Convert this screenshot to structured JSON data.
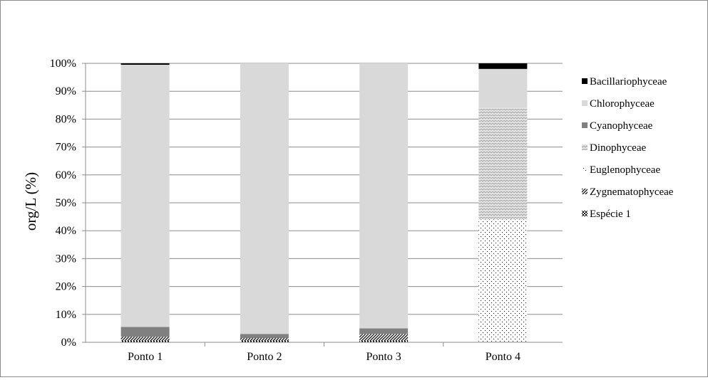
{
  "chart_data": {
    "type": "bar",
    "stacked": true,
    "percent_stacked": true,
    "title": "",
    "xlabel": "",
    "ylabel": "org/L (%)",
    "ylim": [
      0,
      100
    ],
    "y_ticks": [
      0,
      10,
      20,
      30,
      40,
      50,
      60,
      70,
      80,
      90,
      100
    ],
    "y_tick_labels": [
      "0%",
      "10%",
      "20%",
      "30%",
      "40%",
      "50%",
      "60%",
      "70%",
      "80%",
      "90%",
      "100%"
    ],
    "grid": true,
    "legend_position": "right",
    "categories": [
      "Ponto 1",
      "Ponto 2",
      "Ponto 3",
      "Ponto 4"
    ],
    "series": [
      {
        "name": "Espécie 1",
        "pattern": "checker-dots",
        "color": "#000000",
        "values": [
          0.5,
          0.5,
          0.5,
          0
        ]
      },
      {
        "name": "Zygnematophyceae",
        "pattern": "diagonal-stripes",
        "color": "#000000",
        "values": [
          1.5,
          1,
          2.5,
          0
        ]
      },
      {
        "name": "Euglenophyceae",
        "pattern": "sparse-dots",
        "color": "#000000",
        "values": [
          0,
          0,
          0,
          44
        ]
      },
      {
        "name": "Dinophyceae",
        "pattern": "zigzag",
        "color": "#bfbfbf",
        "values": [
          0,
          0,
          0,
          40
        ]
      },
      {
        "name": "Cyanophyceae",
        "pattern": "solid",
        "color": "#808080",
        "values": [
          3.5,
          1.5,
          2,
          0
        ]
      },
      {
        "name": "Chlorophyceae",
        "pattern": "solid",
        "color": "#d9d9d9",
        "values": [
          94,
          97,
          95,
          14
        ]
      },
      {
        "name": "Bacillariophyceae",
        "pattern": "solid",
        "color": "#000000",
        "values": [
          0.5,
          0,
          0,
          2
        ]
      }
    ],
    "legend_order": [
      "Bacillariophyceae",
      "Chlorophyceae",
      "Cyanophyceae",
      "Dinophyceae",
      "Euglenophyceae",
      "Zygnematophyceae",
      "Espécie 1"
    ]
  }
}
